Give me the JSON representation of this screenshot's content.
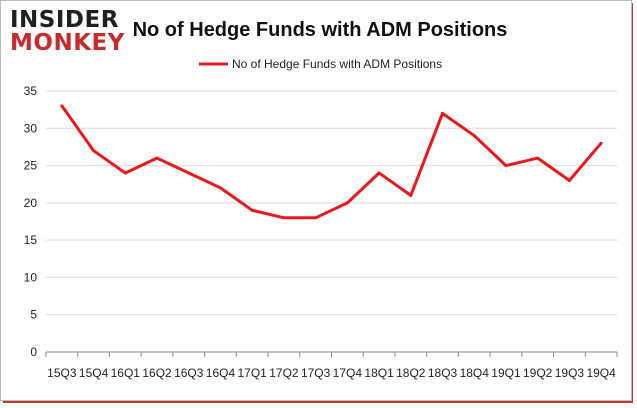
{
  "logo": {
    "line1": "INSIDER",
    "line2": "MONKEY"
  },
  "chart_data": {
    "type": "line",
    "title": "No of Hedge Funds with ADM Positions",
    "xlabel": "",
    "ylabel": "",
    "categories": [
      "15Q3",
      "15Q4",
      "16Q1",
      "16Q2",
      "16Q3",
      "16Q4",
      "17Q1",
      "17Q2",
      "17Q3",
      "17Q4",
      "18Q1",
      "18Q2",
      "18Q3",
      "18Q4",
      "19Q1",
      "19Q2",
      "19Q3",
      "19Q4"
    ],
    "series": [
      {
        "name": "No of Hedge Funds with ADM Positions",
        "color": "#e8191c",
        "values": [
          33,
          27,
          24,
          26,
          24,
          22,
          19,
          18,
          18,
          20,
          24,
          21,
          32,
          29,
          25,
          26,
          23,
          28
        ]
      }
    ],
    "ylim": [
      0,
      35
    ],
    "yticks": [
      0,
      5,
      10,
      15,
      20,
      25,
      30,
      35
    ],
    "grid": true,
    "legend": "top-center"
  },
  "colors": {
    "series": "#e8191c",
    "grid": "#d9d9d9",
    "border": "#c0392b"
  }
}
